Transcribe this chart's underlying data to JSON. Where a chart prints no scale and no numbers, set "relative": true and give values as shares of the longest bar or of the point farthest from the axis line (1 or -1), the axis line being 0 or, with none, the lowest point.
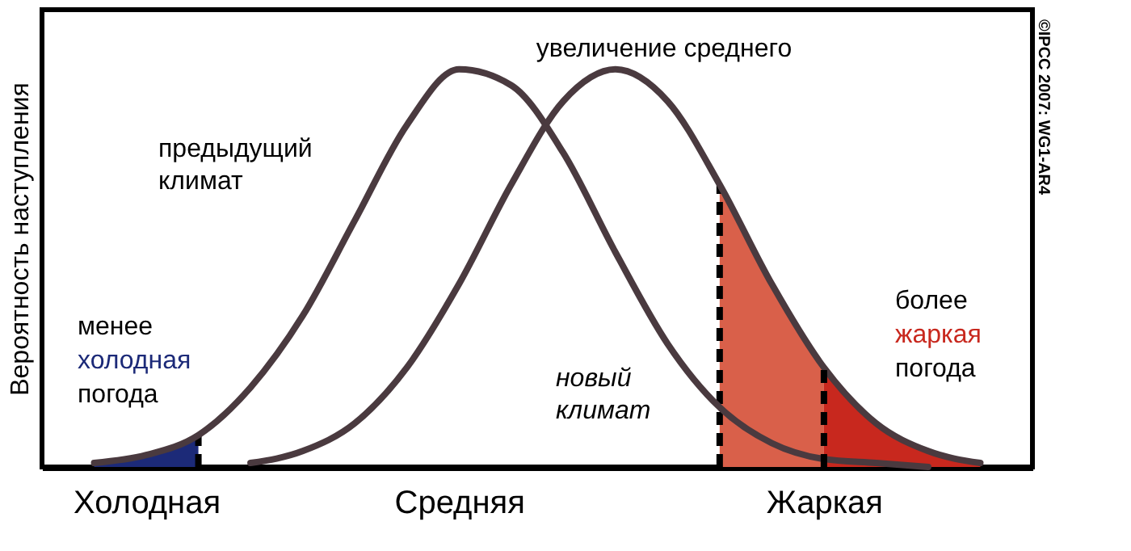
{
  "chart_data": {
    "type": "line",
    "relative": true,
    "ylabel": "Вероятность наступления",
    "categories": [
      null,
      "Холодная",
      null,
      null,
      null,
      null,
      null,
      "Средняя",
      null,
      null,
      null,
      null,
      null,
      null,
      "Жаркая",
      null,
      null,
      null
    ],
    "series": [
      {
        "type": "area",
        "color": "#1c2a78",
        "line_style": "dashed",
        "values": [
          0.01,
          0.03,
          0.08,
          null,
          null,
          null,
          null,
          null,
          null,
          null,
          null,
          null,
          null,
          null,
          null,
          null,
          null,
          null
        ]
      },
      {
        "type": "area",
        "color": "#d9604a",
        "line_style": "dashed",
        "values": [
          null,
          null,
          null,
          null,
          null,
          null,
          null,
          null,
          null,
          null,
          null,
          null,
          0.71,
          0.46,
          0.25,
          null,
          null,
          null
        ]
      },
      {
        "type": "area",
        "color": "#c8281e",
        "values": [
          null,
          null,
          null,
          null,
          null,
          null,
          null,
          null,
          null,
          null,
          null,
          null,
          null,
          null,
          0.25,
          0.11,
          0.04,
          0.01
        ]
      },
      {
        "color": "#4a3a3f",
        "values": [
          0.01,
          0.03,
          0.08,
          0.2,
          0.38,
          0.62,
          0.86,
          1,
          0.96,
          0.79,
          0.54,
          0.31,
          0.15,
          0.06,
          0.02,
          0.01,
          0,
          null
        ]
      },
      {
        "color": "#4a3a3f",
        "values": [
          null,
          null,
          null,
          0.01,
          0.04,
          0.11,
          0.25,
          0.46,
          0.71,
          0.92,
          1,
          0.92,
          0.71,
          0.46,
          0.25,
          0.11,
          0.04,
          0.01
        ]
      }
    ],
    "ref_lines": [
      {
        "axis": "x",
        "value": "Жаркая",
        "line_style": "dashed"
      }
    ],
    "annotations": [
      "увеличение среднего",
      "предыдущий\nклимат",
      "новый\nклимат",
      "менее",
      "холодная",
      "погода",
      "более",
      "жаркая",
      "погода",
      "©IPCC  2007: WG1-AR4"
    ]
  }
}
